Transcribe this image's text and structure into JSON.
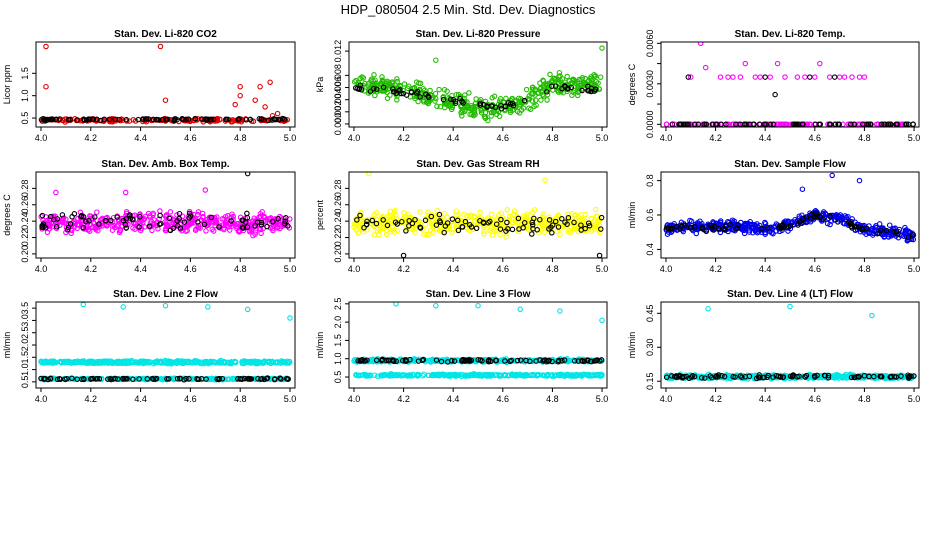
{
  "title": "HDP_080504  2.5 Min. Std. Dev. Diagnostics",
  "colors": {
    "black": "#000000",
    "red": "#e00000",
    "green": "#22bb00",
    "magenta": "#ff00ff",
    "yellow": "#ffff00",
    "blue": "#0000ee",
    "cyan": "#00e5e5"
  },
  "chart_data": [
    {
      "type": "scatter",
      "title": "Stan. Dev. Li-820 CO2",
      "ylabel": "Licor ppm",
      "xlim": [
        3.98,
        5.02
      ],
      "ylim": [
        0.3,
        2.2
      ],
      "xticks": [
        4.0,
        4.2,
        4.4,
        4.6,
        4.8,
        5.0
      ],
      "xtick_labels": [
        "4.0",
        "4.2",
        "4.4",
        "4.6",
        "4.8",
        "5.0"
      ],
      "yticks": [
        0.5,
        1.0,
        1.5
      ],
      "ytick_labels": [
        "0.5",
        "1.0",
        "1.5"
      ],
      "series": [
        {
          "name": "primary",
          "color": "red",
          "gen": {
            "base": 0.45,
            "noise": 0.05,
            "n": 160,
            "spikes": [
              [
                4.02,
                2.1
              ],
              [
                4.02,
                1.2
              ],
              [
                4.48,
                2.1
              ],
              [
                4.5,
                0.9
              ],
              [
                4.8,
                1.0
              ],
              [
                4.8,
                1.2
              ],
              [
                4.78,
                0.8
              ],
              [
                4.86,
                0.9
              ],
              [
                4.88,
                1.2
              ],
              [
                4.9,
                0.75
              ],
              [
                4.92,
                1.3
              ],
              [
                4.95,
                0.6
              ],
              [
                4.93,
                0.55
              ]
            ]
          }
        },
        {
          "name": "secondary",
          "color": "black",
          "gen": {
            "base": 0.47,
            "noise": 0.03,
            "n": 90,
            "spikes": []
          }
        }
      ]
    },
    {
      "type": "scatter",
      "title": "Stan. Dev. Li-820 Pressure",
      "ylabel": "kPa",
      "xlim": [
        3.98,
        5.02
      ],
      "ylim": [
        -0.0005,
        0.0135
      ],
      "xticks": [
        4.0,
        4.2,
        4.4,
        4.6,
        4.8,
        5.0
      ],
      "xtick_labels": [
        "4.0",
        "4.2",
        "4.4",
        "4.6",
        "4.8",
        "5.0"
      ],
      "yticks": [
        0.0,
        0.002,
        0.004,
        0.006,
        0.008,
        0.012
      ],
      "ytick_labels": [
        "0.000",
        "0.002",
        "0.004",
        "0.006",
        "0.008",
        "0.012"
      ],
      "series": [
        {
          "name": "primary",
          "color": "green",
          "gen": {
            "profile": [
              [
                4.0,
                0.0065
              ],
              [
                4.15,
                0.006
              ],
              [
                4.3,
                0.0045
              ],
              [
                4.45,
                0.003
              ],
              [
                4.6,
                0.0025
              ],
              [
                4.7,
                0.004
              ],
              [
                4.8,
                0.0065
              ],
              [
                5.0,
                0.0065
              ]
            ],
            "noise": 0.0025,
            "n": 420,
            "spikes": [
              [
                5.0,
                0.0125
              ],
              [
                4.33,
                0.0105
              ]
            ]
          }
        },
        {
          "name": "secondary",
          "color": "black",
          "gen": {
            "profile": [
              [
                4.0,
                0.006
              ],
              [
                4.15,
                0.0055
              ],
              [
                4.3,
                0.0045
              ],
              [
                4.45,
                0.0035
              ],
              [
                4.6,
                0.0028
              ],
              [
                4.7,
                0.004
              ],
              [
                4.8,
                0.006
              ],
              [
                5.0,
                0.0055
              ]
            ],
            "noise": 0.0008,
            "n": 70,
            "spikes": []
          }
        }
      ]
    },
    {
      "type": "scatter",
      "title": "Stan. Dev. Li-820 Temp.",
      "ylabel": "degrees C",
      "xlim": [
        3.98,
        5.02
      ],
      "ylim": [
        -0.0002,
        0.0061
      ],
      "xticks": [
        4.0,
        4.2,
        4.4,
        4.6,
        4.8,
        5.0
      ],
      "xtick_labels": [
        "4.0",
        "4.2",
        "4.4",
        "4.6",
        "4.8",
        "5.0"
      ],
      "yticks": [
        0.0,
        0.0015,
        0.003,
        0.0045,
        0.006
      ],
      "ytick_labels": [
        "0.0000",
        "",
        "0.0030",
        "",
        "0.0060"
      ],
      "series": [
        {
          "name": "primary",
          "color": "magenta",
          "points": [
            [
              4.1,
              0.0035
            ],
            [
              4.14,
              0.006
            ],
            [
              4.16,
              0.0042
            ],
            [
              4.22,
              0.0035
            ],
            [
              4.25,
              0.0035
            ],
            [
              4.27,
              0.0035
            ],
            [
              4.3,
              0.0035
            ],
            [
              4.32,
              0.0045
            ],
            [
              4.36,
              0.0035
            ],
            [
              4.38,
              0.0035
            ],
            [
              4.42,
              0.0035
            ],
            [
              4.45,
              0.0045
            ],
            [
              4.48,
              0.0035
            ],
            [
              4.53,
              0.0035
            ],
            [
              4.56,
              0.0035
            ],
            [
              4.6,
              0.0035
            ],
            [
              4.62,
              0.0045
            ],
            [
              4.66,
              0.0035
            ],
            [
              4.7,
              0.0035
            ],
            [
              4.72,
              0.0035
            ],
            [
              4.75,
              0.0035
            ],
            [
              4.78,
              0.0035
            ],
            [
              4.8,
              0.0035
            ]
          ],
          "gen": {
            "base": 0.0,
            "noise": 0.0,
            "n": 120,
            "spikes": []
          }
        },
        {
          "name": "secondary",
          "color": "black",
          "points": [
            [
              4.09,
              0.0035
            ],
            [
              4.4,
              0.0035
            ],
            [
              4.44,
              0.0022
            ],
            [
              4.58,
              0.0035
            ],
            [
              4.68,
              0.0035
            ]
          ],
          "gen": {
            "base": 0.0,
            "noise": 0.0,
            "n": 70,
            "spikes": []
          }
        }
      ]
    },
    {
      "type": "scatter",
      "title": "Stan. Dev. Amb. Box Temp.",
      "ylabel": "degrees C",
      "xlim": [
        3.98,
        5.02
      ],
      "ylim": [
        0.195,
        0.3
      ],
      "xticks": [
        4.0,
        4.2,
        4.4,
        4.6,
        4.8,
        5.0
      ],
      "xtick_labels": [
        "4.0",
        "4.2",
        "4.4",
        "4.6",
        "4.8",
        "5.0"
      ],
      "yticks": [
        0.2,
        0.22,
        0.24,
        0.26,
        0.28
      ],
      "ytick_labels": [
        "0.20",
        "0.22",
        "0.24",
        "0.26",
        "0.28"
      ],
      "series": [
        {
          "name": "primary",
          "color": "magenta",
          "gen": {
            "base": 0.238,
            "noise": 0.018,
            "n": 420,
            "spikes": [
              [
                4.06,
                0.275
              ],
              [
                4.34,
                0.275
              ],
              [
                4.66,
                0.278
              ]
            ]
          }
        },
        {
          "name": "secondary",
          "color": "black",
          "gen": {
            "base": 0.24,
            "noise": 0.018,
            "n": 80,
            "spikes": [
              [
                4.83,
                0.298
              ]
            ]
          }
        }
      ]
    },
    {
      "type": "scatter",
      "title": "Stan. Dev. Gas Stream RH",
      "ylabel": "percent",
      "xlim": [
        3.98,
        5.02
      ],
      "ylim": [
        0.195,
        0.3
      ],
      "xticks": [
        4.0,
        4.2,
        4.4,
        4.6,
        4.8,
        5.0
      ],
      "xtick_labels": [
        "4.0",
        "4.2",
        "4.4",
        "4.6",
        "4.8",
        "5.0"
      ],
      "yticks": [
        0.2,
        0.22,
        0.24,
        0.26,
        0.28
      ],
      "ytick_labels": [
        "0.20",
        "0.22",
        "0.24",
        "0.26",
        "0.28"
      ],
      "series": [
        {
          "name": "primary",
          "color": "yellow",
          "gen": {
            "base": 0.238,
            "noise": 0.02,
            "n": 420,
            "spikes": [
              [
                4.06,
                0.298
              ],
              [
                4.77,
                0.29
              ]
            ]
          }
        },
        {
          "name": "secondary",
          "color": "black",
          "gen": {
            "base": 0.235,
            "noise": 0.015,
            "n": 80,
            "spikes": [
              [
                4.2,
                0.198
              ],
              [
                4.99,
                0.198
              ]
            ]
          }
        }
      ]
    },
    {
      "type": "scatter",
      "title": "Stan. Dev. Sample Flow",
      "ylabel": "ml/min",
      "xlim": [
        3.98,
        5.02
      ],
      "ylim": [
        0.35,
        0.85
      ],
      "xticks": [
        4.0,
        4.2,
        4.4,
        4.6,
        4.8,
        5.0
      ],
      "xtick_labels": [
        "4.0",
        "4.2",
        "4.4",
        "4.6",
        "4.8",
        "5.0"
      ],
      "yticks": [
        0.4,
        0.6,
        0.8
      ],
      "ytick_labels": [
        "0.4",
        "0.6",
        "0.8"
      ],
      "series": [
        {
          "name": "primary",
          "color": "blue",
          "gen": {
            "profile": [
              [
                4.0,
                0.52
              ],
              [
                4.2,
                0.54
              ],
              [
                4.4,
                0.52
              ],
              [
                4.5,
                0.54
              ],
              [
                4.6,
                0.6
              ],
              [
                4.7,
                0.58
              ],
              [
                4.8,
                0.52
              ],
              [
                5.0,
                0.48
              ]
            ],
            "noise": 0.05,
            "n": 460,
            "spikes": [
              [
                4.55,
                0.75
              ],
              [
                4.67,
                0.83
              ],
              [
                4.78,
                0.8
              ]
            ]
          }
        },
        {
          "name": "secondary",
          "color": "black",
          "gen": {
            "profile": [
              [
                4.0,
                0.52
              ],
              [
                4.5,
                0.53
              ],
              [
                4.6,
                0.6
              ],
              [
                4.8,
                0.52
              ],
              [
                5.0,
                0.48
              ]
            ],
            "noise": 0.03,
            "n": 80,
            "spikes": []
          }
        }
      ]
    },
    {
      "type": "scatter",
      "title": "Stan. Dev. Line 2 Flow",
      "ylabel": "ml/min",
      "xlim": [
        3.98,
        5.02
      ],
      "ylim": [
        0.25,
        3.75
      ],
      "xticks": [
        4.0,
        4.2,
        4.4,
        4.6,
        4.8,
        5.0
      ],
      "xtick_labels": [
        "4.0",
        "4.2",
        "4.4",
        "4.6",
        "4.8",
        "5.0"
      ],
      "yticks": [
        0.5,
        1.0,
        1.5,
        2.0,
        2.5,
        3.0,
        3.5
      ],
      "ytick_labels": [
        "0.5",
        "1.0",
        "1.5",
        "2.0",
        "2.5",
        "3.0",
        "3.5"
      ],
      "series": [
        {
          "name": "primary",
          "color": "cyan",
          "gen": {
            "base": 1.3,
            "noise": 0.08,
            "n": 420,
            "spikes": [
              [
                4.17,
                3.65
              ],
              [
                4.33,
                3.55
              ],
              [
                4.5,
                3.6
              ],
              [
                4.67,
                3.55
              ],
              [
                4.83,
                3.45
              ],
              [
                5.0,
                3.1
              ]
            ]
          }
        },
        {
          "name": "band",
          "color": "cyan",
          "gen": {
            "base": 0.62,
            "noise": 0.04,
            "n": 300,
            "spikes": []
          }
        },
        {
          "name": "secondary",
          "color": "black",
          "gen": {
            "base": 0.62,
            "noise": 0.04,
            "n": 90,
            "spikes": []
          }
        }
      ]
    },
    {
      "type": "scatter",
      "title": "Stan. Dev. Line 3 Flow",
      "ylabel": "ml/min",
      "xlim": [
        3.98,
        5.02
      ],
      "ylim": [
        0.2,
        2.55
      ],
      "xticks": [
        4.0,
        4.2,
        4.4,
        4.6,
        4.8,
        5.0
      ],
      "xtick_labels": [
        "4.0",
        "4.2",
        "4.4",
        "4.6",
        "4.8",
        "5.0"
      ],
      "yticks": [
        0.5,
        1.0,
        1.5,
        2.0,
        2.5
      ],
      "ytick_labels": [
        "0.5",
        "1.0",
        "1.5",
        "2.0",
        "2.5"
      ],
      "series": [
        {
          "name": "primary",
          "color": "cyan",
          "gen": {
            "base": 0.95,
            "noise": 0.06,
            "n": 380,
            "spikes": [
              [
                4.17,
                2.5
              ],
              [
                4.33,
                2.45
              ],
              [
                4.5,
                2.45
              ],
              [
                4.67,
                2.35
              ],
              [
                4.83,
                2.3
              ],
              [
                5.0,
                2.05
              ]
            ]
          }
        },
        {
          "name": "band",
          "color": "cyan",
          "gen": {
            "base": 0.55,
            "noise": 0.04,
            "n": 320,
            "spikes": []
          }
        },
        {
          "name": "secondary",
          "color": "black",
          "gen": {
            "base": 0.95,
            "noise": 0.05,
            "n": 90,
            "spikes": []
          }
        }
      ]
    },
    {
      "type": "scatter",
      "title": "Stan. Dev. Line 4 (LT) Flow",
      "ylabel": "ml/min",
      "xlim": [
        3.98,
        5.02
      ],
      "ylim": [
        0.12,
        0.5
      ],
      "xticks": [
        4.0,
        4.2,
        4.4,
        4.6,
        4.8,
        5.0
      ],
      "xtick_labels": [
        "4.0",
        "4.2",
        "4.4",
        "4.6",
        "4.8",
        "5.0"
      ],
      "yticks": [
        0.15,
        0.3,
        0.45
      ],
      "ytick_labels": [
        "0.15",
        "0.30",
        "0.45"
      ],
      "series": [
        {
          "name": "primary",
          "color": "cyan",
          "gen": {
            "base": 0.17,
            "noise": 0.012,
            "n": 480,
            "spikes": [
              [
                4.17,
                0.47
              ],
              [
                4.5,
                0.48
              ],
              [
                4.83,
                0.44
              ]
            ]
          }
        },
        {
          "name": "secondary",
          "color": "black",
          "gen": {
            "base": 0.17,
            "noise": 0.01,
            "n": 90,
            "spikes": []
          }
        }
      ]
    }
  ]
}
